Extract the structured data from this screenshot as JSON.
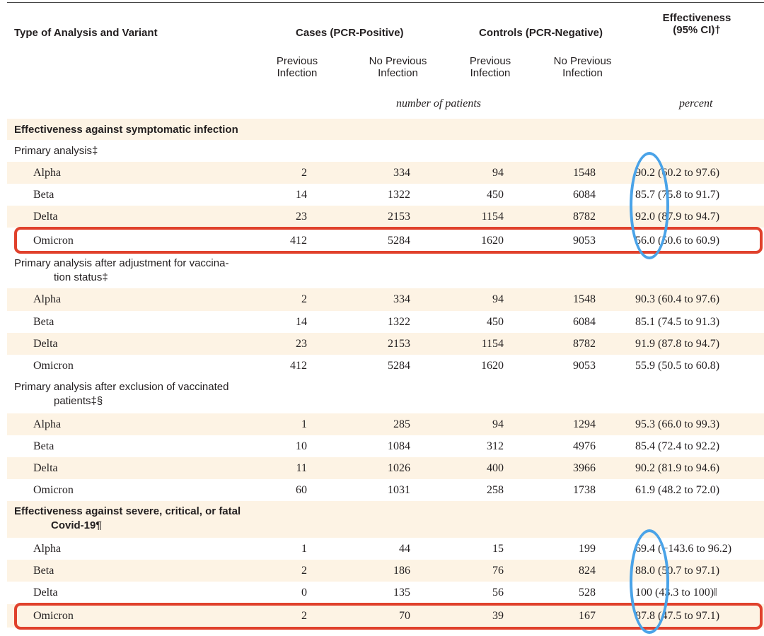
{
  "header": {
    "col_type": "Type of Analysis and Variant",
    "cases_group": "Cases (PCR-Positive)",
    "controls_group": "Controls (PCR-Negative)",
    "eff_line1": "Effectiveness",
    "eff_line2": "(95% CI)†",
    "sub_prev_1": "Previous",
    "sub_prev_2": "Infection",
    "sub_noprev_1": "No Previous",
    "sub_noprev_2": "Infection",
    "unit_patients": "number of patients",
    "unit_percent": "percent"
  },
  "sections": {
    "symptomatic": "Effectiveness against symptomatic infection",
    "primary": "Primary analysis‡",
    "adj_line1": "Primary analysis after adjustment for vaccina-",
    "adj_line2": "tion status‡",
    "excl_line1": "Primary analysis after exclusion of vaccinated",
    "excl_line2": "patients‡§",
    "severe_line1": "Effectiveness against severe, critical, or fatal",
    "severe_line2": "Covid-19¶"
  },
  "rows": [
    {
      "variant": "Alpha",
      "c1": "2",
      "c2": "334",
      "c3": "94",
      "c4": "1548",
      "eff": "90.2 (60.2 to 97.6)"
    },
    {
      "variant": "Beta",
      "c1": "14",
      "c2": "1322",
      "c3": "450",
      "c4": "6084",
      "eff": "85.7 (75.8 to 91.7)"
    },
    {
      "variant": "Delta",
      "c1": "23",
      "c2": "2153",
      "c3": "1154",
      "c4": "8782",
      "eff": "92.0 (87.9 to 94.7)"
    },
    {
      "variant": "Omicron",
      "c1": "412",
      "c2": "5284",
      "c3": "1620",
      "c4": "9053",
      "eff": "56.0 (50.6 to 60.9)"
    },
    {
      "variant": "Alpha",
      "c1": "2",
      "c2": "334",
      "c3": "94",
      "c4": "1548",
      "eff": "90.3 (60.4 to 97.6)"
    },
    {
      "variant": "Beta",
      "c1": "14",
      "c2": "1322",
      "c3": "450",
      "c4": "6084",
      "eff": "85.1 (74.5 to 91.3)"
    },
    {
      "variant": "Delta",
      "c1": "23",
      "c2": "2153",
      "c3": "1154",
      "c4": "8782",
      "eff": "91.9 (87.8 to 94.7)"
    },
    {
      "variant": "Omicron",
      "c1": "412",
      "c2": "5284",
      "c3": "1620",
      "c4": "9053",
      "eff": "55.9 (50.5 to 60.8)"
    },
    {
      "variant": "Alpha",
      "c1": "1",
      "c2": "285",
      "c3": "94",
      "c4": "1294",
      "eff": "95.3 (66.0 to 99.3)"
    },
    {
      "variant": "Beta",
      "c1": "10",
      "c2": "1084",
      "c3": "312",
      "c4": "4976",
      "eff": "85.4 (72.4 to 92.2)"
    },
    {
      "variant": "Delta",
      "c1": "11",
      "c2": "1026",
      "c3": "400",
      "c4": "3966",
      "eff": "90.2 (81.9 to 94.6)"
    },
    {
      "variant": "Omicron",
      "c1": "60",
      "c2": "1031",
      "c3": "258",
      "c4": "1738",
      "eff": "61.9 (48.2 to 72.0)"
    },
    {
      "variant": "Alpha",
      "c1": "1",
      "c2": "44",
      "c3": "15",
      "c4": "199",
      "eff": "69.4 (−143.6 to 96.2)"
    },
    {
      "variant": "Beta",
      "c1": "2",
      "c2": "186",
      "c3": "76",
      "c4": "824",
      "eff": "88.0 (50.7 to 97.1)"
    },
    {
      "variant": "Delta",
      "c1": "0",
      "c2": "135",
      "c3": "56",
      "c4": "528",
      "eff": "100 (43.3 to 100)‖"
    },
    {
      "variant": "Omicron",
      "c1": "2",
      "c2": "70",
      "c3": "39",
      "c4": "167",
      "eff": "87.8 (47.5 to 97.1)"
    }
  ],
  "annotation_colors": {
    "highlight_box": "#e0412c",
    "highlight_ring": "#4aa3e8",
    "row_shade": "#fdf3e4"
  }
}
